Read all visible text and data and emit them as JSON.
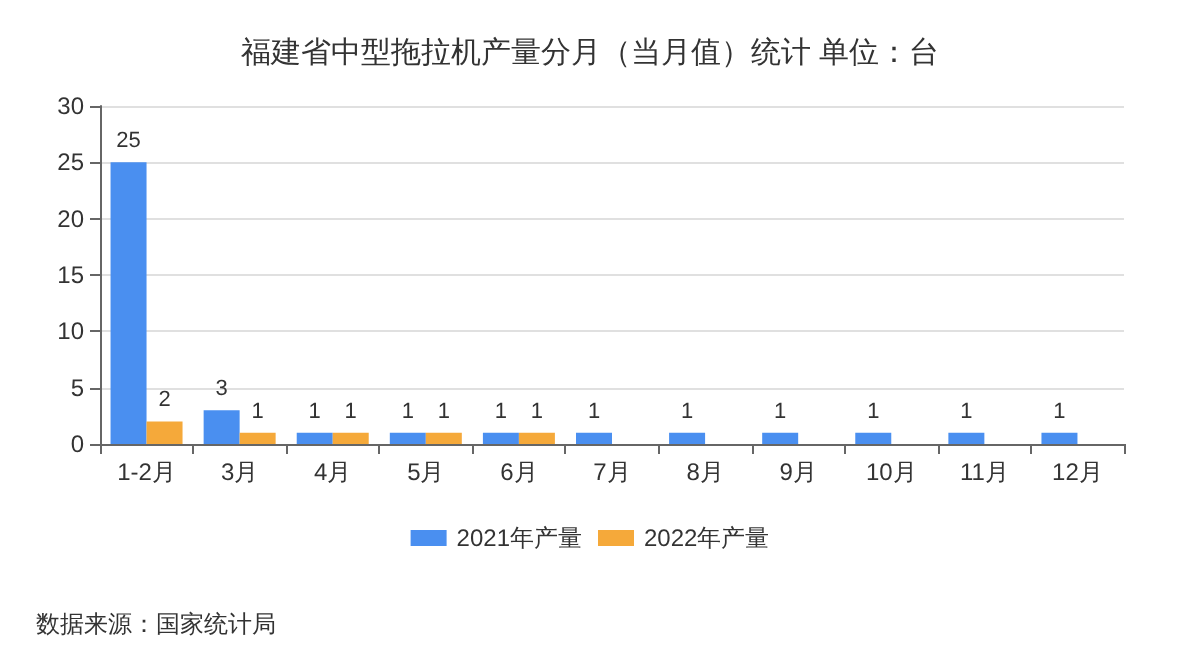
{
  "chart_data": {
    "type": "bar",
    "title": "福建省中型拖拉机产量分月（当月值）统计 单位：台",
    "categories": [
      "1-2月",
      "3月",
      "4月",
      "5月",
      "6月",
      "7月",
      "8月",
      "9月",
      "10月",
      "11月",
      "12月"
    ],
    "series": [
      {
        "name": "2021年产量",
        "color": "#4a8ff0",
        "values": [
          25,
          3,
          1,
          1,
          1,
          1,
          1,
          1,
          1,
          1,
          1
        ]
      },
      {
        "name": "2022年产量",
        "color": "#f5a93a",
        "values": [
          2,
          1,
          1,
          1,
          1,
          null,
          null,
          null,
          null,
          null,
          null
        ]
      }
    ],
    "ylim": [
      0,
      30
    ],
    "yticks": [
      0,
      5,
      10,
      15,
      20,
      25,
      30
    ],
    "grid": "y",
    "legend": "bottom",
    "data_labels": true,
    "annotations": [
      "数据来源：国家统计局"
    ]
  }
}
